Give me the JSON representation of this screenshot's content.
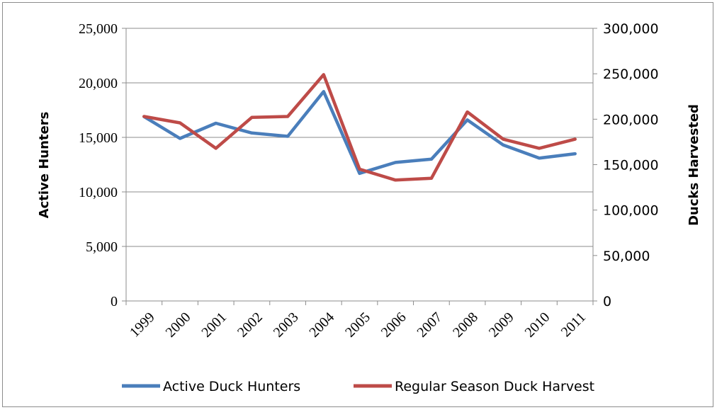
{
  "chart_data": {
    "type": "line",
    "categories": [
      "1999",
      "2000",
      "2001",
      "2002",
      "2003",
      "2004",
      "2005",
      "2006",
      "2007",
      "2008",
      "2009",
      "2010",
      "2011"
    ],
    "series": [
      {
        "name": "Active Duck Hunters",
        "axis": "left",
        "color": "#4a7ebb",
        "values": [
          16900,
          14900,
          16300,
          15400,
          15100,
          19200,
          11700,
          12700,
          13000,
          16600,
          14300,
          13100,
          13500
        ]
      },
      {
        "name": "Regular Season Duck Harvest",
        "axis": "right",
        "color": "#be4b48",
        "values": [
          203000,
          196000,
          168000,
          202000,
          203000,
          249000,
          145000,
          133000,
          135000,
          208000,
          178000,
          168000,
          178000
        ]
      }
    ],
    "ylabel": "Active Hunters",
    "y2label": "Ducks Harvested",
    "ylim": [
      0,
      25000
    ],
    "y2lim": [
      0,
      300000
    ],
    "yticks": [
      "0",
      "5,000",
      "10,000",
      "15,000",
      "20,000",
      "25,000"
    ],
    "y2ticks": [
      "0",
      "50,000",
      "100,000",
      "150,000",
      "200,000",
      "250,000",
      "300,000"
    ],
    "grid": true,
    "legend": "bottom"
  }
}
